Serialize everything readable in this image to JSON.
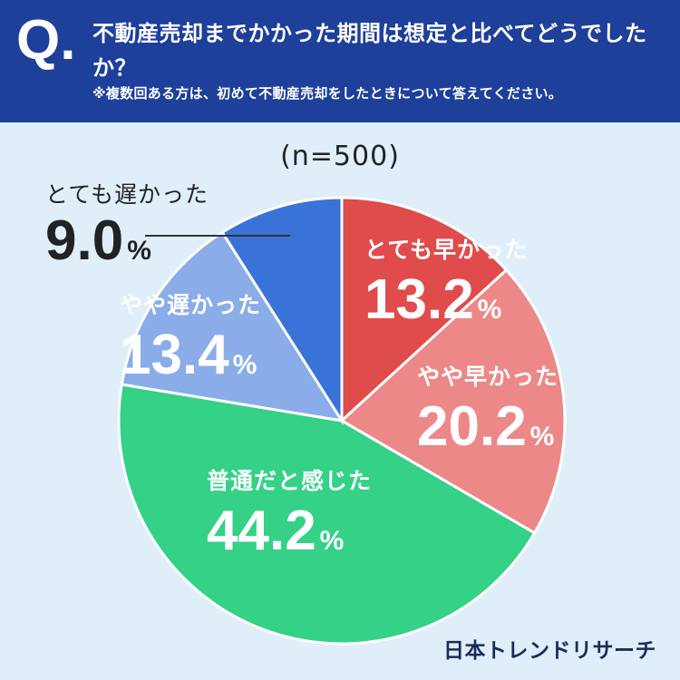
{
  "header": {
    "q_mark": "Q.",
    "question": "不動産売却までかかった期間は想定と比べてどうでしたか？",
    "note": "※複数回ある方は、初めて不動産売却をしたときについて答えてください。"
  },
  "chart_data": {
    "type": "pie",
    "title": "(n=500)",
    "start_angle_deg": 0,
    "direction": "clockwise",
    "slices": [
      {
        "label": "とても早かった",
        "value": 13.2,
        "value_text": "13.2",
        "color": "#e04b4b"
      },
      {
        "label": "やや早かった",
        "value": 20.2,
        "value_text": "20.2",
        "color": "#ec8888"
      },
      {
        "label": "普通だと感じた",
        "value": 44.2,
        "value_text": "44.2",
        "color": "#34d187"
      },
      {
        "label": "やや遅かった",
        "value": 13.4,
        "value_text": "13.4",
        "color": "#8aace8"
      },
      {
        "label": "とても遅かった",
        "value": 9.0,
        "value_text": "9.0",
        "color": "#3a73d8"
      }
    ],
    "unit": "%"
  },
  "brand": "日本トレンドリサーチ"
}
